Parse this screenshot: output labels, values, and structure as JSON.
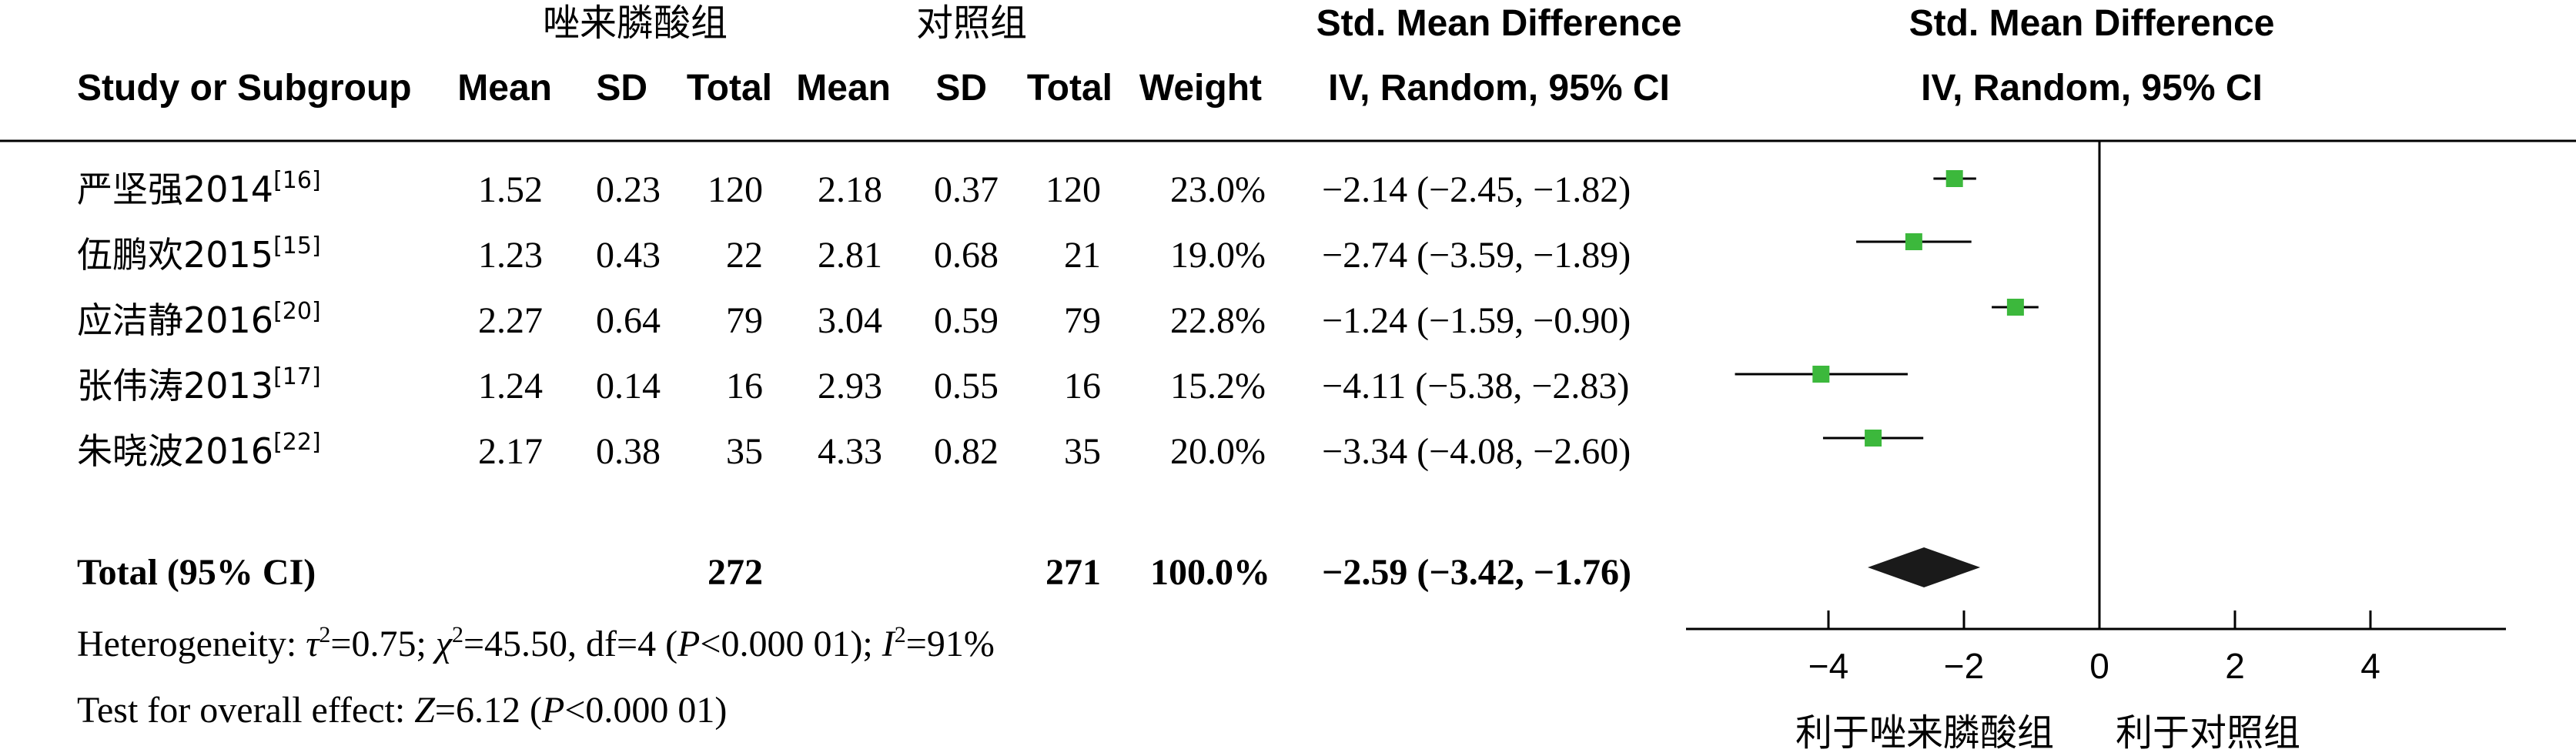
{
  "header": {
    "group1": "唑来膦酸组",
    "group2": "对照组",
    "smd_title": "Std. Mean Difference",
    "smd_method": "IV, Random, 95% CI",
    "plot_title": "Std. Mean Difference",
    "plot_method": "IV, Random, 95% CI",
    "study_col": "Study or Subgroup",
    "mean1": "Mean",
    "sd1": "SD",
    "total1": "Total",
    "mean2": "Mean",
    "sd2": "SD",
    "total2": "Total",
    "weight": "Weight"
  },
  "studies": [
    {
      "name": "严坚强2014",
      "ref": "[16]",
      "mean1": "1.52",
      "sd1": "0.23",
      "total1": "120",
      "mean2": "2.18",
      "sd2": "0.37",
      "total2": "120",
      "weight": "23.0%",
      "ci_text": "−2.14 (−2.45, −1.82)"
    },
    {
      "name": "伍鹏欢2015",
      "ref": "[15]",
      "mean1": "1.23",
      "sd1": "0.43",
      "total1": "22",
      "mean2": "2.81",
      "sd2": "0.68",
      "total2": "21",
      "weight": "19.0%",
      "ci_text": "−2.74 (−3.59, −1.89)"
    },
    {
      "name": "应洁静2016",
      "ref": "[20]",
      "mean1": "2.27",
      "sd1": "0.64",
      "total1": "79",
      "mean2": "3.04",
      "sd2": "0.59",
      "total2": "79",
      "weight": "22.8%",
      "ci_text": "−1.24 (−1.59, −0.90)"
    },
    {
      "name": "张伟涛2013",
      "ref": "[17]",
      "mean1": "1.24",
      "sd1": "0.14",
      "total1": "16",
      "mean2": "2.93",
      "sd2": "0.55",
      "total2": "16",
      "weight": "15.2%",
      "ci_text": "−4.11 (−5.38, −2.83)"
    },
    {
      "name": "朱晓波2016",
      "ref": "[22]",
      "mean1": "2.17",
      "sd1": "0.38",
      "total1": "35",
      "mean2": "4.33",
      "sd2": "0.82",
      "total2": "35",
      "weight": "20.0%",
      "ci_text": "−3.34 (−4.08, −2.60)"
    }
  ],
  "total": {
    "label": "Total (95% CI)",
    "total1": "272",
    "total2": "271",
    "weight": "100.0%",
    "ci_text": "−2.59 (−3.42, −1.76)"
  },
  "heterogeneity": {
    "prefix": "Heterogeneity: ",
    "tau": "τ",
    "tau_val": "=0.75; ",
    "chi": "χ",
    "chi_val": "=45.50, df=4 (",
    "p1": "P",
    "p1_val": "<0.000 01); ",
    "i": "I",
    "i_val": "=91%",
    "sq": "2"
  },
  "overall": {
    "prefix": "Test for overall effect: ",
    "z": "Z",
    "z_val": "=6.12 (",
    "p": "P",
    "p_val": "<0.000 01)"
  },
  "axis": {
    "favors_left": "利于唑来膦酸组",
    "favors_right": "利于对照组"
  },
  "colors": {
    "box": "#3cb83c",
    "diamond": "#1a1a1a",
    "line": "#000000"
  },
  "chart_data": {
    "type": "scatter",
    "title": "Std. Mean Difference",
    "xlim": [
      -6.5,
      6
    ],
    "xticks": [
      -4,
      -2,
      0,
      2,
      4
    ],
    "xtick_labels": [
      "−4",
      "−2",
      "0",
      "2",
      "4"
    ],
    "xlabel_left": "利于唑来膦酸组",
    "xlabel_right": "利于对照组",
    "series": [
      {
        "study": "严坚强2014",
        "estimate": -2.14,
        "lower": -2.45,
        "upper": -1.82,
        "weight": 23.0
      },
      {
        "study": "伍鹏欢2015",
        "estimate": -2.74,
        "lower": -3.59,
        "upper": -1.89,
        "weight": 19.0
      },
      {
        "study": "应洁静2016",
        "estimate": -1.24,
        "lower": -1.59,
        "upper": -0.9,
        "weight": 22.8
      },
      {
        "study": "张伟涛2013",
        "estimate": -4.11,
        "lower": -5.38,
        "upper": -2.83,
        "weight": 15.2
      },
      {
        "study": "朱晓波2016",
        "estimate": -3.34,
        "lower": -4.08,
        "upper": -2.6,
        "weight": 20.0
      }
    ],
    "pooled": {
      "estimate": -2.59,
      "lower": -3.42,
      "upper": -1.76,
      "weight": 100.0
    }
  }
}
